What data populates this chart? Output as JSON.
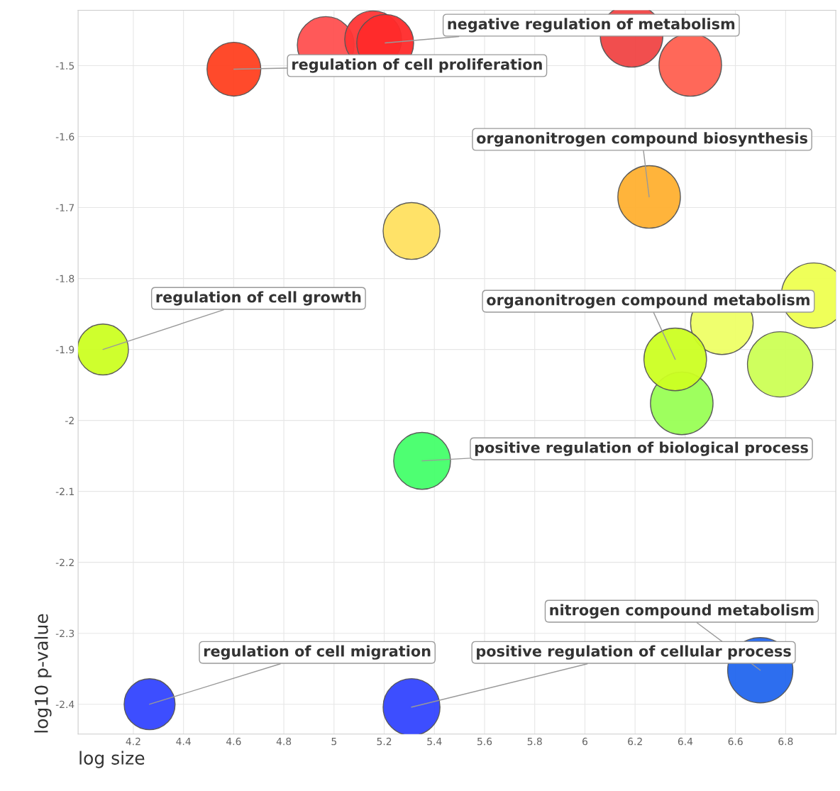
{
  "chart_data": {
    "type": "bubble",
    "xlabel": "log size",
    "ylabel": "log10 p-value",
    "x": [
      4.967,
      5.156,
      5.204,
      4.601,
      6.186,
      6.42,
      6.256,
      5.309,
      6.913,
      6.546,
      6.778,
      6.386,
      6.36,
      4.079,
      5.351,
      4.265,
      5.309,
      6.699
    ],
    "values": [
      -1.471,
      -1.463,
      -1.468,
      -1.505,
      -1.458,
      -1.499,
      -1.685,
      -1.733,
      -1.824,
      -1.863,
      -1.921,
      -1.976,
      -1.914,
      -1.9,
      -2.057,
      -2.4,
      -2.404,
      -2.352
    ],
    "sizes": [
      0.76,
      0.76,
      0.76,
      0.68,
      0.92,
      0.92,
      0.92,
      0.76,
      1,
      0.92,
      1,
      0.92,
      0.92,
      0.61,
      0.76,
      0.61,
      0.76,
      1
    ],
    "colors": [
      "#ff5050",
      "#ff3535",
      "#ff2a2a",
      "#ff4020",
      "#f04545",
      "#ff6050",
      "#ffb030",
      "#ffe060",
      "#eeff50",
      "#eeff66",
      "#ccff55",
      "#99ff55",
      "#ccff22",
      "#ccff22",
      "#44ff6a",
      "#3344ff",
      "#3344ff",
      "#2266ee"
    ],
    "xlim": [
      3.98,
      7.0
    ],
    "ylim": [
      -2.442,
      -1.422
    ],
    "xticks": [
      4.2,
      4.4,
      4.6,
      4.8,
      5,
      5.2,
      5.4,
      5.6,
      5.8,
      6,
      6.2,
      6.4,
      6.6,
      6.8
    ],
    "yticks": [
      -1.5,
      -1.6,
      -1.7,
      -1.8,
      -1.9,
      -2,
      -2.1,
      -2.2,
      -2.3,
      -2.4
    ],
    "grid": true,
    "annotations": [
      {
        "text": "negative regulation of metabolism",
        "x": 5.204,
        "y": -1.468
      },
      {
        "text": "regulation of cell proliferation",
        "x": 4.601,
        "y": -1.505
      },
      {
        "text": "organonitrogen compound biosynthesis",
        "x": 6.256,
        "y": -1.685
      },
      {
        "text": "regulation of cell growth",
        "x": 4.079,
        "y": -1.9
      },
      {
        "text": "organonitrogen compound metabolism",
        "x": 6.36,
        "y": -1.914
      },
      {
        "text": "positive regulation of biological process",
        "x": 5.351,
        "y": -2.057
      },
      {
        "text": "nitrogen compound metabolism",
        "x": 6.699,
        "y": -2.352
      },
      {
        "text": "regulation of cell migration",
        "x": 4.265,
        "y": -2.4
      },
      {
        "text": "positive regulation of cellular process",
        "x": 5.309,
        "y": -2.404
      }
    ]
  }
}
